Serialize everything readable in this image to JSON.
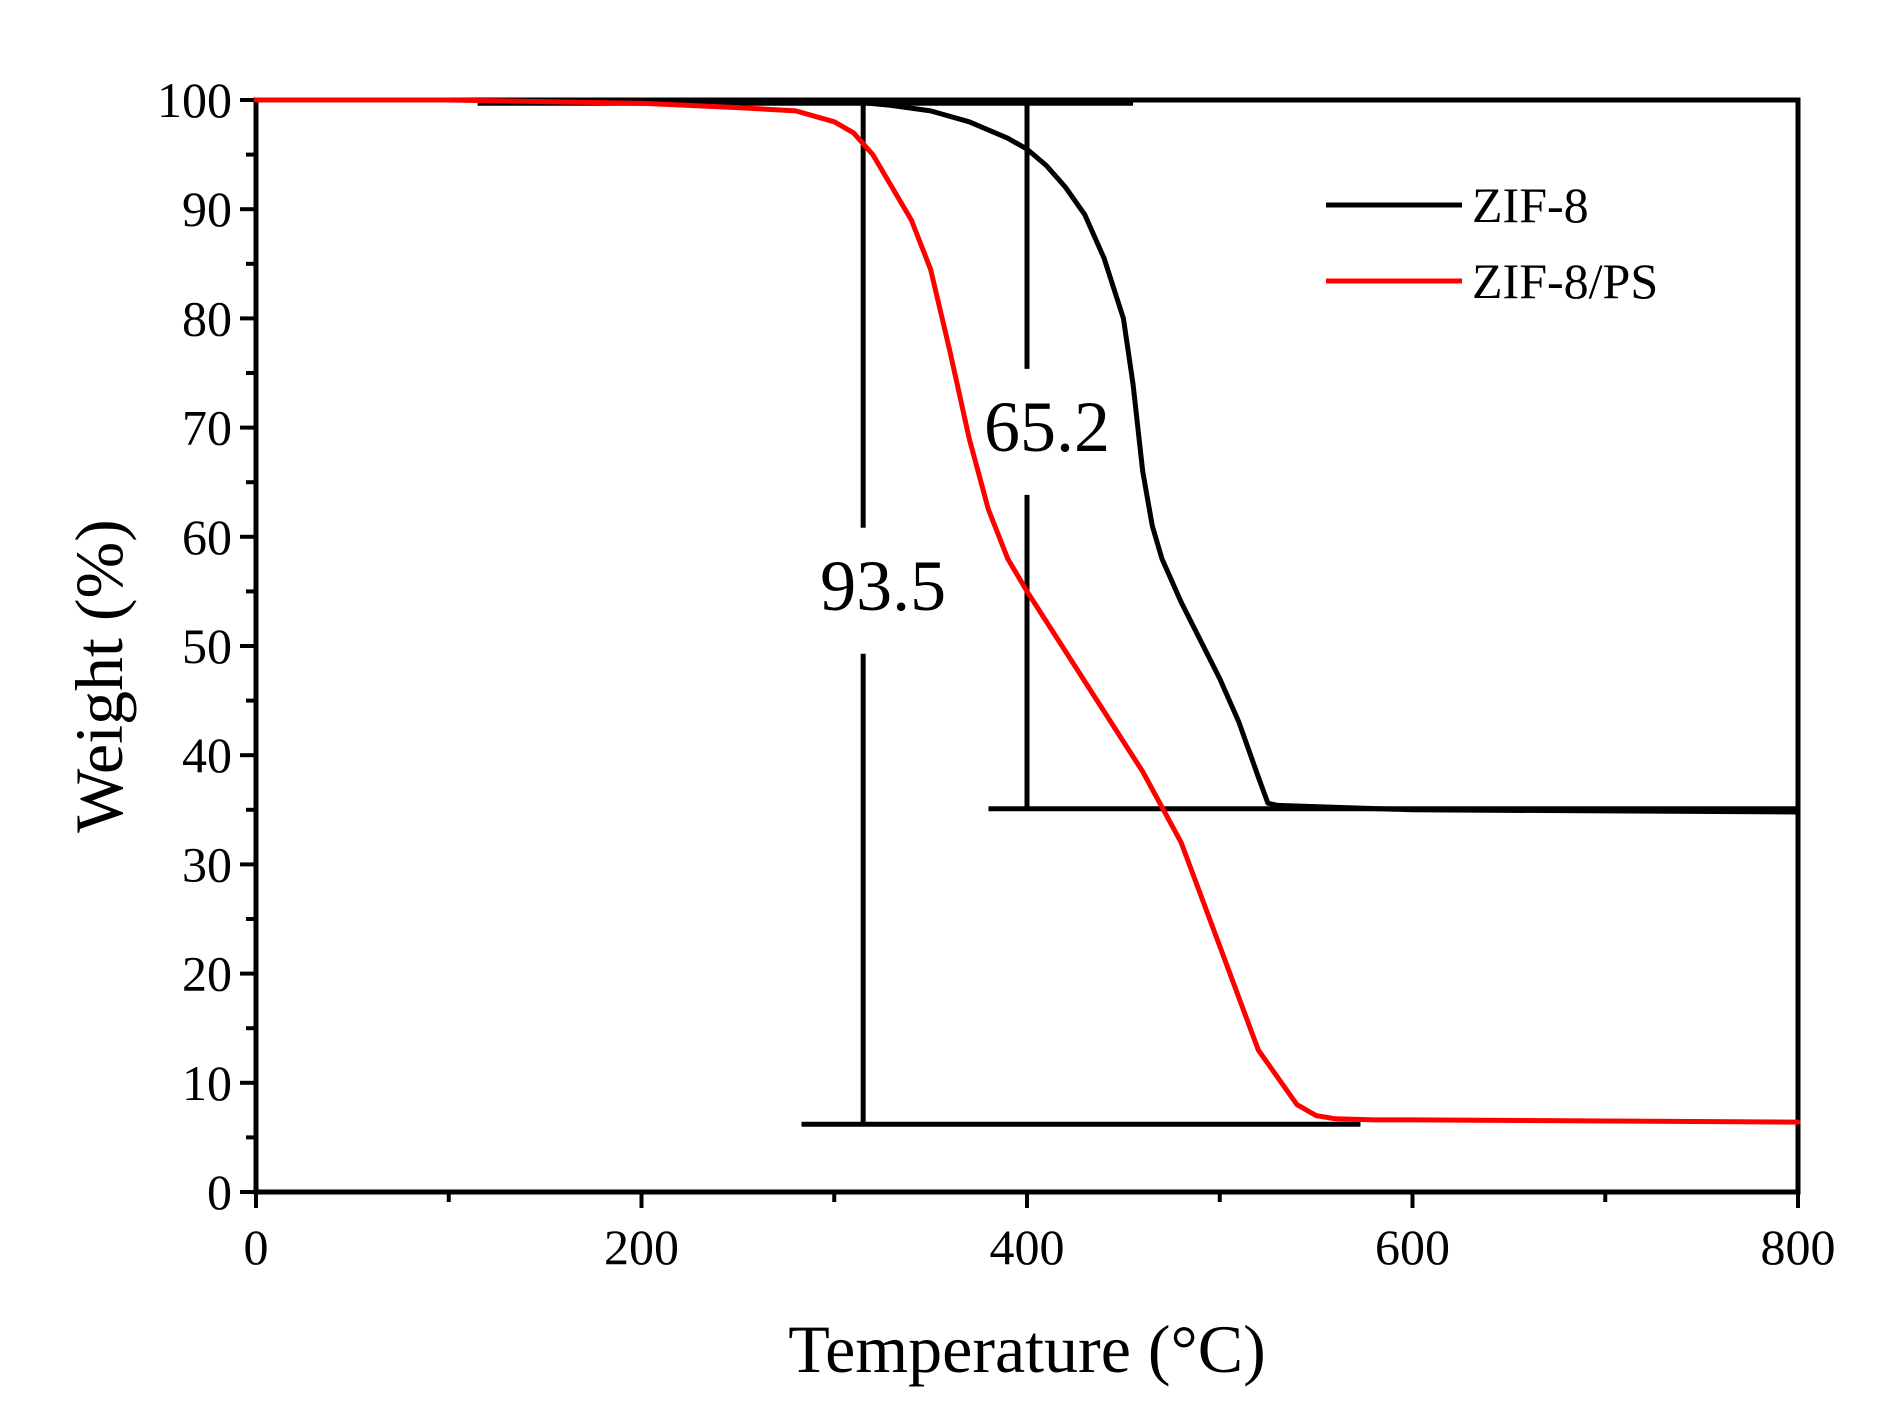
{
  "chart_data": {
    "type": "line",
    "title": "",
    "xlabel": "Temperature (°C)",
    "ylabel": "Weight (%)",
    "xlim": [
      0,
      800
    ],
    "ylim": [
      0,
      100
    ],
    "x_ticks": [
      "0",
      "200",
      "400",
      "600",
      "800"
    ],
    "x_tick_values": [
      0,
      200,
      400,
      600,
      800
    ],
    "y_ticks": [
      "0",
      "10",
      "20",
      "30",
      "40",
      "50",
      "60",
      "70",
      "80",
      "90",
      "100"
    ],
    "y_tick_values": [
      0,
      10,
      20,
      30,
      40,
      50,
      60,
      70,
      80,
      90,
      100
    ],
    "grid": false,
    "legend_position": "top-right",
    "series": [
      {
        "name": "ZIF-8",
        "color": "#000000",
        "x": [
          0,
          100,
          200,
          250,
          300,
          330,
          350,
          370,
          390,
          400,
          410,
          420,
          430,
          440,
          450,
          455,
          460,
          465,
          470,
          480,
          490,
          500,
          510,
          520,
          525,
          530,
          600,
          700,
          800
        ],
        "y": [
          100,
          100,
          100,
          100,
          100,
          99.5,
          99,
          98,
          96.5,
          95.5,
          94,
          92,
          89.5,
          85.5,
          80,
          74,
          66,
          61,
          58,
          54,
          50.5,
          47,
          43,
          38,
          35.6,
          35.4,
          35,
          34.9,
          34.8
        ]
      },
      {
        "name": "ZIF-8/PS",
        "color": "#ff0000",
        "x": [
          0,
          100,
          200,
          250,
          280,
          300,
          310,
          320,
          330,
          340,
          350,
          360,
          370,
          380,
          390,
          400,
          420,
          440,
          460,
          480,
          500,
          520,
          540,
          550,
          560,
          580,
          600,
          700,
          800
        ],
        "y": [
          100,
          100,
          99.7,
          99.3,
          99,
          98,
          97,
          95,
          92,
          89,
          84.5,
          77,
          69,
          62.5,
          58,
          55,
          49.5,
          44,
          38.5,
          32,
          22.5,
          13,
          8,
          7,
          6.7,
          6.6,
          6.6,
          6.5,
          6.4
        ]
      }
    ],
    "annotations": [
      {
        "text": "65.2",
        "x": 400,
        "y_from": 35.1,
        "y_to": 99.9,
        "top_line_x_range": [
          230,
          455
        ],
        "bottom_line_x_range": [
          380,
          800
        ]
      },
      {
        "text": "93.5",
        "x": 315,
        "y_from": 6.2,
        "y_to": 99.7,
        "top_line_x_range": [
          115,
          455
        ],
        "bottom_line_x_range": [
          283,
          573
        ]
      }
    ]
  }
}
